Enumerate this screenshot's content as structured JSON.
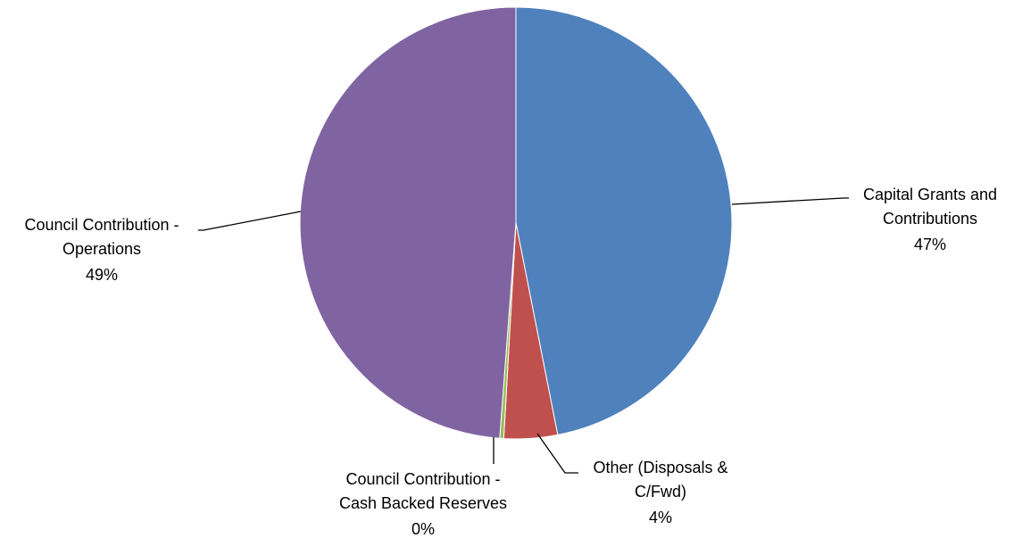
{
  "chart_data": {
    "type": "pie",
    "title": "",
    "slices": [
      {
        "label_lines": [
          "Capital Grants and",
          "Contributions"
        ],
        "percent_label": "47%",
        "value": 46.9,
        "color": "#4F81BD"
      },
      {
        "label_lines": [
          "Other (Disposals &",
          "C/Fwd)"
        ],
        "percent_label": "4%",
        "value": 4.0,
        "color": "#C0504D"
      },
      {
        "label_lines": [
          "Council Contribution -",
          "Cash Backed Reserves"
        ],
        "percent_label": "0%",
        "value": 0.3,
        "color": "#9BBB59"
      },
      {
        "label_lines": [
          "Council Contribution -",
          "Operations"
        ],
        "percent_label": "49%",
        "value": 48.8,
        "color": "#8064A2"
      }
    ],
    "start_angle": "12 o'clock",
    "direction": "clockwise",
    "legend": "none"
  }
}
